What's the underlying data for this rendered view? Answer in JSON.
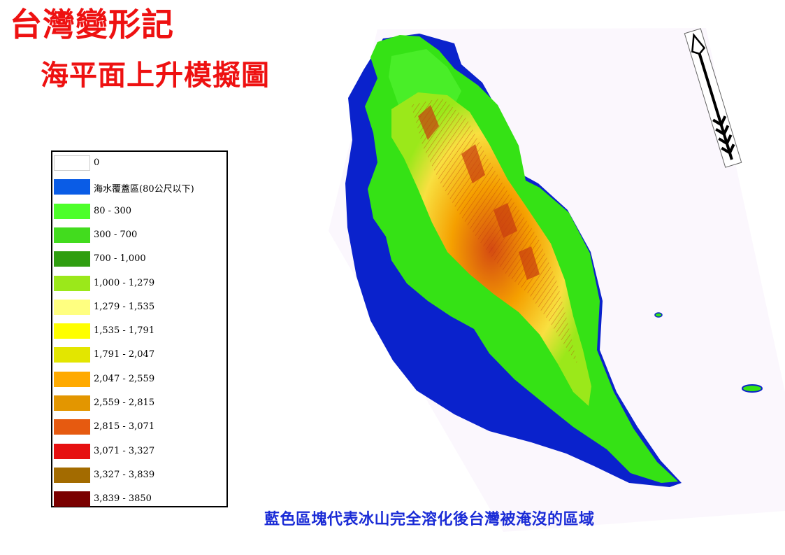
{
  "title": "台灣變形記",
  "subtitle": "海平面上升模擬圖",
  "caption": "藍色區塊代表冰山完全溶化後台灣被淹沒的區域",
  "legend": [
    {
      "label": "0",
      "color": "#ffffff"
    },
    {
      "label": "海水覆蓋區(80公尺以下)",
      "color": "#0a5ce6"
    },
    {
      "label": "80 - 300",
      "color": "#4dff2a"
    },
    {
      "label": "300 - 700",
      "color": "#42dc1e"
    },
    {
      "label": "700 - 1,000",
      "color": "#2f9e10"
    },
    {
      "label": "1,000 - 1,279",
      "color": "#9be81a"
    },
    {
      "label": "1,279 - 1,535",
      "color": "#ffff80"
    },
    {
      "label": "1,535 - 1,791",
      "color": "#ffff00"
    },
    {
      "label": "1,791 - 2,047",
      "color": "#e3e600"
    },
    {
      "label": "2,047 - 2,559",
      "color": "#ffaa00"
    },
    {
      "label": "2,559 - 2,815",
      "color": "#e39600"
    },
    {
      "label": "2,815 - 3,071",
      "color": "#e65a10"
    },
    {
      "label": "3,071 - 3,327",
      "color": "#e61010"
    },
    {
      "label": "3,327 - 3,839",
      "color": "#a36b00"
    },
    {
      "label": "3,839 - 3850",
      "color": "#7a0000"
    }
  ],
  "colors": {
    "title": "#ee1111",
    "caption": "#1a2bd6",
    "flooded_area": "#0a22cc",
    "lowland": "#33ee11",
    "highland": "#f5a000",
    "peaks": "#c83a10"
  },
  "icons": {
    "north_arrow": "north-arrow-icon"
  }
}
